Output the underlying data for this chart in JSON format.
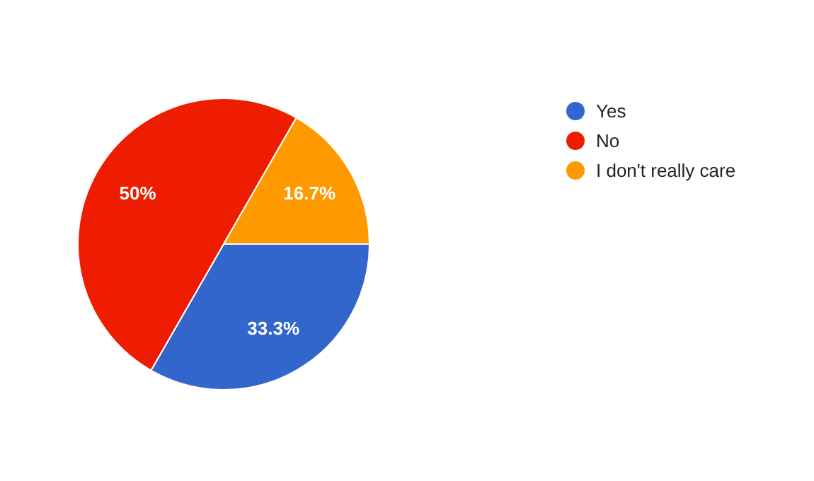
{
  "chart_data": {
    "type": "pie",
    "categories": [
      "Yes",
      "No",
      "I don't really care"
    ],
    "values": [
      33.3,
      50,
      16.7
    ],
    "colors": [
      "#3366cc",
      "#ee1c00",
      "#ff9900"
    ],
    "value_labels": [
      "33.3%",
      "50%",
      "16.7%"
    ],
    "legend": "top right"
  }
}
